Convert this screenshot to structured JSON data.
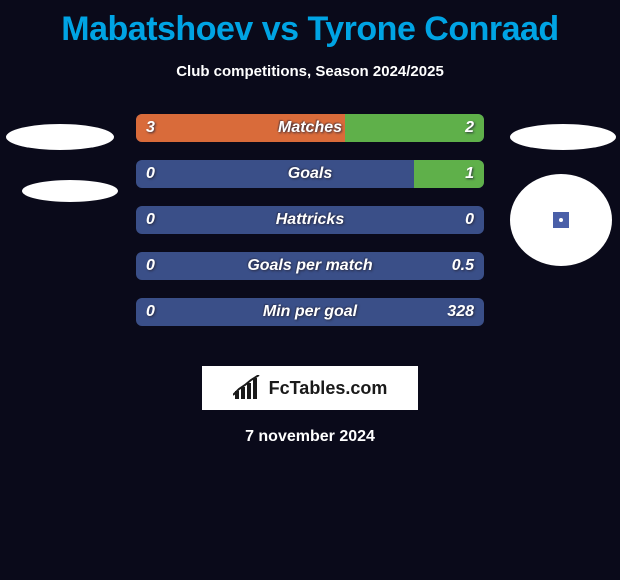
{
  "title": {
    "player1": "Mabatshoev",
    "vs": "vs",
    "player2": "Tyrone Conraad",
    "player1_color": "#00a4e4",
    "vs_color": "#00a4e4",
    "player2_color": "#00a4e4"
  },
  "subtitle": "Club competitions, Season 2024/2025",
  "colors": {
    "background": "#0a0a1a",
    "bar_base": "#3a4f88",
    "left_fill": "#d96b3a",
    "right_fill": "#5fb04a",
    "text": "#ffffff"
  },
  "bars": [
    {
      "label": "Matches",
      "left": "3",
      "right": "2",
      "left_frac": 0.6,
      "right_frac": 0.4
    },
    {
      "label": "Goals",
      "left": "0",
      "right": "1",
      "left_frac": 0.0,
      "right_frac": 0.2
    },
    {
      "label": "Hattricks",
      "left": "0",
      "right": "0",
      "left_frac": 0.0,
      "right_frac": 0.0
    },
    {
      "label": "Goals per match",
      "left": "0",
      "right": "0.5",
      "left_frac": 0.0,
      "right_frac": 0.0
    },
    {
      "label": "Min per goal",
      "left": "0",
      "right": "328",
      "left_frac": 0.0,
      "right_frac": 0.0
    }
  ],
  "logo_text": "FcTables.com",
  "date": "7 november 2024"
}
